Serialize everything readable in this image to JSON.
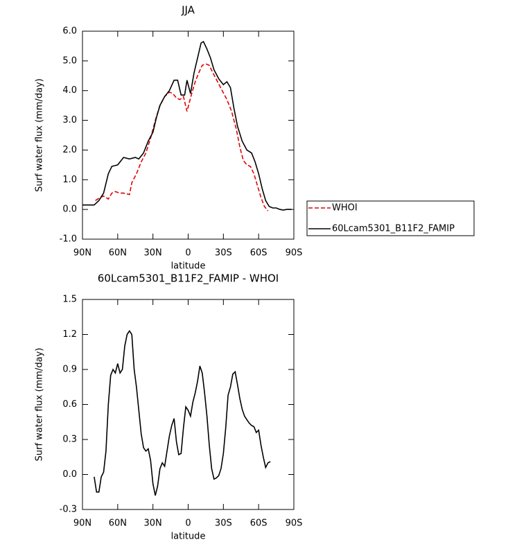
{
  "chart_data": [
    {
      "type": "line",
      "title": "JJA",
      "xlabel": "latitude",
      "ylabel": "Surf water flux (mm/day)",
      "xlim": [
        90,
        -90
      ],
      "xticks": [
        {
          "value": 90,
          "label": "90N"
        },
        {
          "value": 60,
          "label": "60N"
        },
        {
          "value": 30,
          "label": "30N"
        },
        0,
        {
          "value": -30,
          "label": "30S"
        },
        {
          "value": -60,
          "label": "60S"
        },
        {
          "value": -90,
          "label": "90S"
        }
      ],
      "ylim": [
        -1,
        6
      ],
      "yticks": [
        {
          "value": -1,
          "label": "-1.0"
        },
        {
          "value": 0,
          "label": "0.0"
        },
        {
          "value": 1,
          "label": "1.0"
        },
        {
          "value": 2,
          "label": "2.0"
        },
        {
          "value": 3,
          "label": "3.0"
        },
        {
          "value": 4,
          "label": "4.0"
        },
        {
          "value": 5,
          "label": "5.0"
        },
        {
          "value": 6,
          "label": "6.0"
        }
      ],
      "legend": "outside right",
      "series": [
        {
          "name": "WHOI",
          "color": "#e00000",
          "linestyle": "dashed",
          "x": [
            79,
            75,
            72,
            68,
            65,
            62,
            58,
            55,
            50,
            48,
            44,
            40,
            36,
            32,
            28,
            24,
            20,
            16,
            13,
            10,
            7,
            4,
            1,
            -3,
            -6,
            -9,
            -12,
            -15,
            -18,
            -21,
            -25,
            -29,
            -33,
            -37,
            -41,
            -44,
            -47,
            -50,
            -53,
            -56,
            -59,
            -62,
            -65,
            -68
          ],
          "values": [
            0.3,
            0.4,
            0.45,
            0.35,
            0.55,
            0.6,
            0.55,
            0.55,
            0.5,
            0.9,
            1.2,
            1.6,
            1.9,
            2.4,
            3.0,
            3.5,
            3.8,
            3.95,
            3.9,
            3.75,
            3.7,
            3.8,
            3.3,
            3.9,
            4.3,
            4.6,
            4.85,
            4.9,
            4.85,
            4.6,
            4.3,
            4.0,
            3.7,
            3.3,
            2.7,
            2.1,
            1.65,
            1.5,
            1.45,
            1.2,
            0.8,
            0.4,
            0.1,
            -0.05
          ]
        },
        {
          "name": "60Lcam5301_B11F2_FAMIP",
          "color": "#000000",
          "linestyle": "solid",
          "x": [
            90,
            80,
            76,
            72,
            68,
            65,
            60,
            55,
            50,
            45,
            42,
            38,
            34,
            30,
            27,
            24,
            20,
            16,
            12,
            9,
            6,
            3,
            1,
            -2,
            -5,
            -8,
            -11,
            -13,
            -16,
            -19,
            -22,
            -26,
            -30,
            -33,
            -36,
            -39,
            -42,
            -46,
            -50,
            -54,
            -57,
            -60,
            -63,
            -66,
            -69,
            -72,
            -75,
            -78,
            -81,
            -84,
            -88
          ],
          "values": [
            0.15,
            0.15,
            0.3,
            0.55,
            1.2,
            1.45,
            1.5,
            1.75,
            1.7,
            1.75,
            1.7,
            1.9,
            2.3,
            2.6,
            3.1,
            3.5,
            3.8,
            4.0,
            4.35,
            4.35,
            3.85,
            3.85,
            4.35,
            3.9,
            4.6,
            5.1,
            5.6,
            5.65,
            5.4,
            5.1,
            4.7,
            4.4,
            4.2,
            4.3,
            4.1,
            3.4,
            2.8,
            2.3,
            2.0,
            1.9,
            1.6,
            1.2,
            0.7,
            0.3,
            0.1,
            0.05,
            0.05,
            0.0,
            -0.02,
            0.0,
            0.0
          ]
        }
      ]
    },
    {
      "type": "line",
      "title": "60Lcam5301_B11F2_FAMIP - WHOI",
      "xlabel": "latitude",
      "ylabel": "Surf water flux (mm/day)",
      "xlim": [
        90,
        -90
      ],
      "xticks": [
        {
          "value": 90,
          "label": "90N"
        },
        {
          "value": 60,
          "label": "60N"
        },
        {
          "value": 30,
          "label": "30N"
        },
        0,
        {
          "value": -30,
          "label": "30S"
        },
        {
          "value": -60,
          "label": "60S"
        },
        {
          "value": -90,
          "label": "90S"
        }
      ],
      "ylim": [
        -0.3,
        1.5
      ],
      "yticks": [
        {
          "value": -0.3,
          "label": "-0.3"
        },
        {
          "value": 0,
          "label": "0.0"
        },
        0.3,
        0.6,
        0.9,
        1.2,
        1.5
      ],
      "series": [
        {
          "color": "#000000",
          "linestyle": "solid",
          "x": [
            80,
            78,
            76,
            74,
            72,
            70,
            68,
            66,
            64,
            62,
            60,
            58,
            56,
            54,
            52,
            50,
            48,
            46,
            44,
            42,
            40,
            38,
            36,
            34,
            32,
            30,
            28,
            26,
            24,
            22,
            20,
            18,
            16,
            14,
            12,
            10,
            8,
            6,
            4,
            2,
            0,
            -2,
            -4,
            -6,
            -8,
            -10,
            -12,
            -14,
            -16,
            -18,
            -20,
            -22,
            -24,
            -26,
            -28,
            -30,
            -32,
            -34,
            -36,
            -38,
            -40,
            -42,
            -44,
            -46,
            -48,
            -50,
            -52,
            -54,
            -56,
            -58,
            -60,
            -62,
            -64,
            -66,
            -68,
            -70
          ],
          "values": [
            -0.02,
            -0.15,
            -0.15,
            -0.02,
            0.02,
            0.2,
            0.6,
            0.85,
            0.9,
            0.87,
            0.95,
            0.87,
            0.9,
            1.1,
            1.2,
            1.23,
            1.2,
            0.9,
            0.75,
            0.55,
            0.35,
            0.23,
            0.2,
            0.22,
            0.12,
            -0.08,
            -0.18,
            -0.1,
            0.05,
            0.1,
            0.07,
            0.2,
            0.33,
            0.42,
            0.48,
            0.28,
            0.17,
            0.18,
            0.4,
            0.58,
            0.55,
            0.5,
            0.62,
            0.7,
            0.8,
            0.93,
            0.87,
            0.7,
            0.5,
            0.25,
            0.05,
            -0.04,
            -0.03,
            -0.01,
            0.05,
            0.18,
            0.4,
            0.68,
            0.75,
            0.86,
            0.88,
            0.77,
            0.65,
            0.56,
            0.5,
            0.47,
            0.44,
            0.42,
            0.41,
            0.36,
            0.38,
            0.25,
            0.15,
            0.06,
            0.1,
            0.11
          ]
        }
      ]
    }
  ]
}
